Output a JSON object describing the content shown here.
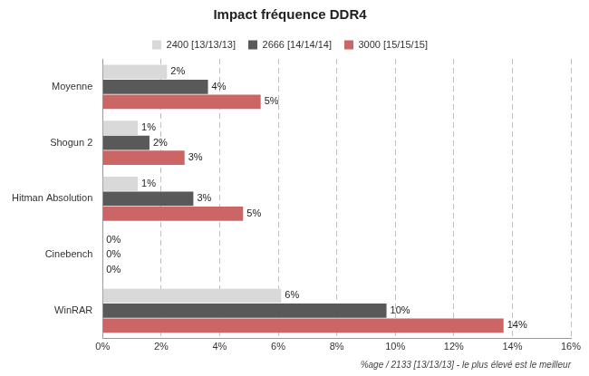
{
  "chart_data": {
    "type": "bar",
    "orientation": "horizontal",
    "title": "Impact fréquence DDR4",
    "xlabel": "%age / 2133 [13/13/13] - le plus élevé est le meilleur",
    "categories": [
      "Moyenne",
      "Shogun 2",
      "Hitman Absolution",
      "Cinebench",
      "WinRAR"
    ],
    "series": [
      {
        "name": "2400 [13/13/13]",
        "color": "#d9d9d9",
        "values": [
          2.2,
          1.2,
          1.2,
          0,
          6.1
        ],
        "value_labels": [
          "2%",
          "1%",
          "1%",
          "0%",
          "6%"
        ]
      },
      {
        "name": "2666 [14/14/14]",
        "color": "#595959",
        "values": [
          3.6,
          1.6,
          3.1,
          0,
          9.7
        ],
        "value_labels": [
          "4%",
          "2%",
          "3%",
          "0%",
          "10%"
        ]
      },
      {
        "name": "3000 [15/15/15]",
        "color": "#cc6666",
        "values": [
          5.4,
          2.8,
          4.8,
          0,
          13.7
        ],
        "value_labels": [
          "5%",
          "3%",
          "5%",
          "0%",
          "14%"
        ]
      }
    ],
    "xlim": [
      0,
      16
    ],
    "xticks": [
      {
        "value": 0,
        "label": "0%"
      },
      {
        "value": 2,
        "label": "2%"
      },
      {
        "value": 4,
        "label": "4%"
      },
      {
        "value": 6,
        "label": "6%"
      },
      {
        "value": 8,
        "label": "8%"
      },
      {
        "value": 10,
        "label": "10%"
      },
      {
        "value": 12,
        "label": "12%"
      },
      {
        "value": 14,
        "label": "14%"
      },
      {
        "value": 16,
        "label": "16%"
      }
    ],
    "grid": true,
    "legend": "top",
    "data_labels": true
  }
}
